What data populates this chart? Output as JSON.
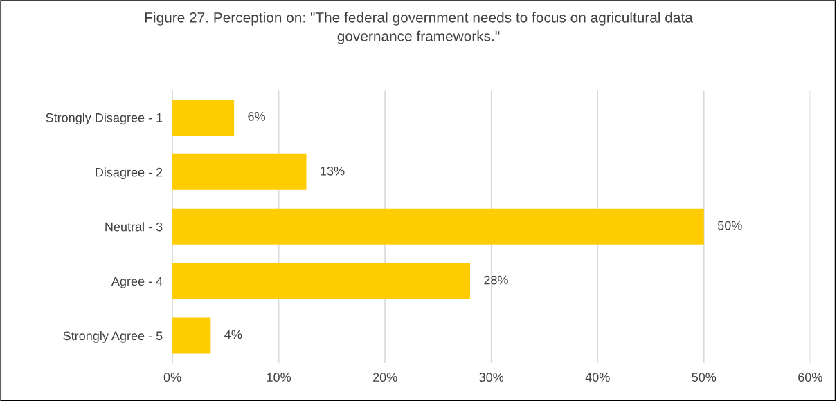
{
  "chart_data": {
    "type": "bar",
    "orientation": "horizontal",
    "title": "Figure 27. Perception on: \"The federal government needs to focus on agricultural data\ngovernance frameworks.\"",
    "categories": [
      "Strongly Disagree - 1",
      "Disagree - 2",
      "Neutral - 3",
      "Agree - 4",
      "Strongly Agree - 5"
    ],
    "values": [
      5.8,
      12.6,
      50,
      28,
      3.6
    ],
    "value_labels": [
      "6%",
      "13%",
      "50%",
      "28%",
      "4%"
    ],
    "color": "#ffcc00",
    "xlim": [
      0,
      60
    ],
    "xticks": [
      {
        "value": 0,
        "label": "0%"
      },
      {
        "value": 10,
        "label": "10%"
      },
      {
        "value": 20,
        "label": "20%"
      },
      {
        "value": 30,
        "label": "30%"
      },
      {
        "value": 40,
        "label": "40%"
      },
      {
        "value": 50,
        "label": "50%"
      },
      {
        "value": 60,
        "label": "60%"
      }
    ],
    "grid": "x",
    "legend": false
  }
}
